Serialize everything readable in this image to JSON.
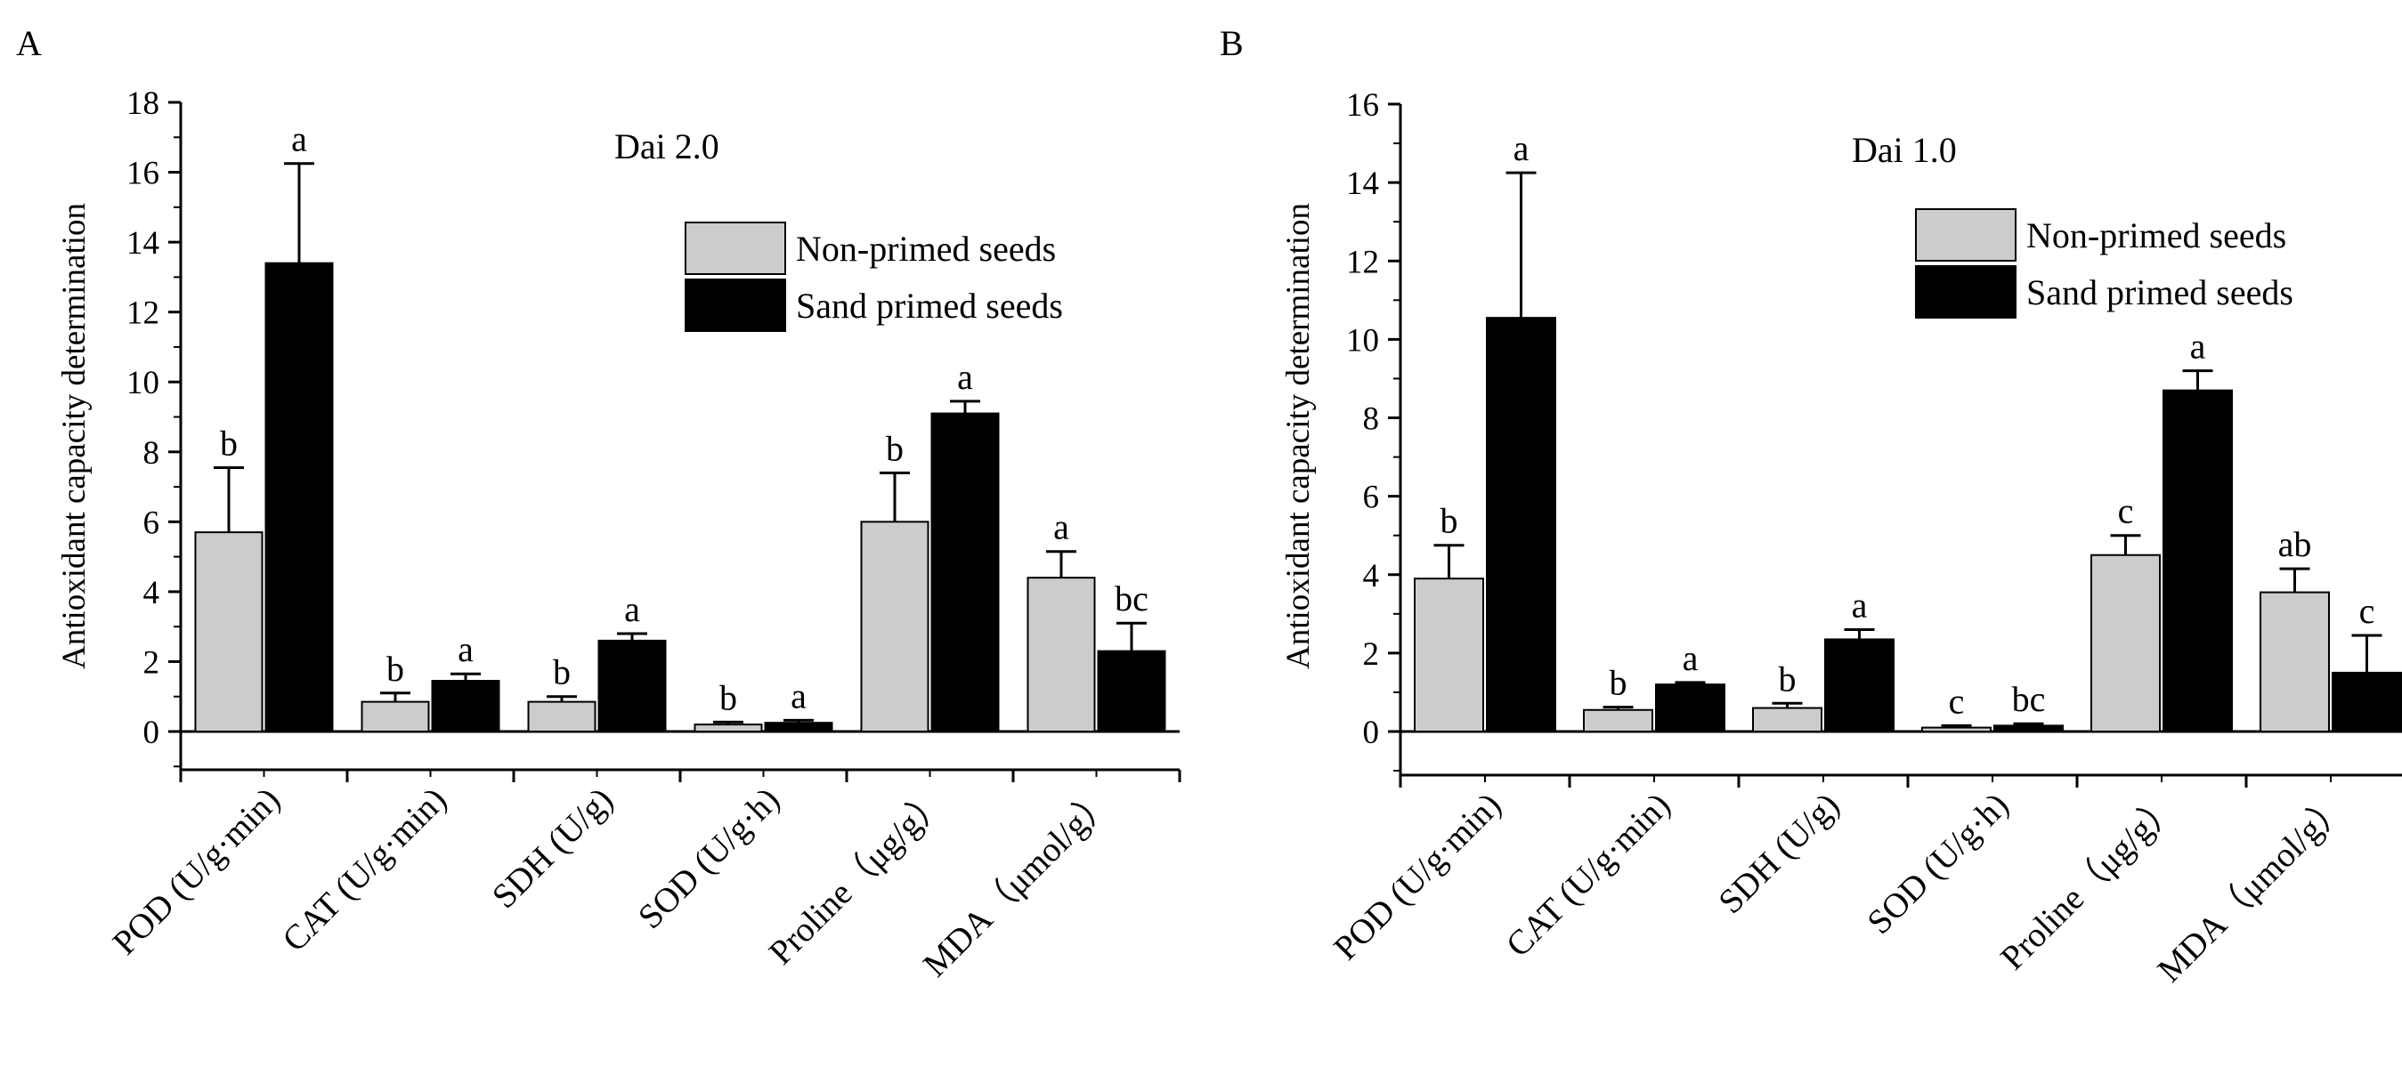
{
  "colors": {
    "non_primed": "#cccccc",
    "sand_primed": "#000000",
    "axis": "#000000",
    "background": "#ffffff"
  },
  "chart_data": [
    {
      "panel_label": "A",
      "type": "bar",
      "title": "Dai 2.0",
      "ylabel": "Antioxidant capacity determination",
      "xlabel": "",
      "ylim": [
        -1.5,
        18
      ],
      "yticks": [
        0,
        2,
        4,
        6,
        8,
        10,
        12,
        14,
        16,
        18
      ],
      "categories": [
        "POD (U/g·min)",
        "CAT (U/g·min)",
        "SDH (U/g)",
        "SOD (U/g·h)",
        "Proline（μg/g）",
        "MDA（μmol/g）"
      ],
      "legend_position": "top-right",
      "series": [
        {
          "name": "Non-primed seeds",
          "color": "#cccccc",
          "values": [
            5.7,
            0.85,
            0.85,
            0.2,
            6.0,
            4.4
          ],
          "errors": [
            1.85,
            0.25,
            0.15,
            0.07,
            1.4,
            0.75
          ],
          "letters": [
            "b",
            "b",
            "b",
            "b",
            "b",
            "a"
          ]
        },
        {
          "name": "Sand primed seeds",
          "color": "#000000",
          "values": [
            13.4,
            1.45,
            2.6,
            0.25,
            9.1,
            2.3
          ],
          "errors": [
            2.85,
            0.2,
            0.2,
            0.07,
            0.35,
            0.8
          ],
          "letters": [
            "a",
            "a",
            "a",
            "a",
            "a",
            "bc"
          ]
        }
      ]
    },
    {
      "panel_label": "B",
      "type": "bar",
      "title": "Dai 1.0",
      "ylabel": "Antioxidant capacity determination",
      "xlabel": "",
      "ylim": [
        -1.1,
        16
      ],
      "yticks": [
        0,
        2,
        4,
        6,
        8,
        10,
        12,
        14,
        16
      ],
      "categories": [
        "POD (U/g·min)",
        "CAT (U/g·min)",
        "SDH (U/g)",
        "SOD (U/g·h)",
        "Proline（μg/g）",
        "MDA（μmol/g）"
      ],
      "legend_position": "top-right",
      "series": [
        {
          "name": "Non-primed seeds",
          "color": "#cccccc",
          "values": [
            3.9,
            0.55,
            0.6,
            0.1,
            4.5,
            3.55
          ],
          "errors": [
            0.85,
            0.07,
            0.12,
            0.05,
            0.5,
            0.6
          ],
          "letters": [
            "b",
            "b",
            "b",
            "c",
            "c",
            "ab"
          ]
        },
        {
          "name": "Sand primed seeds",
          "color": "#000000",
          "values": [
            10.55,
            1.2,
            2.35,
            0.15,
            8.7,
            1.5
          ],
          "errors": [
            3.7,
            0.05,
            0.25,
            0.05,
            0.5,
            0.95
          ],
          "letters": [
            "a",
            "a",
            "a",
            "bc",
            "a",
            "c"
          ]
        }
      ]
    }
  ]
}
